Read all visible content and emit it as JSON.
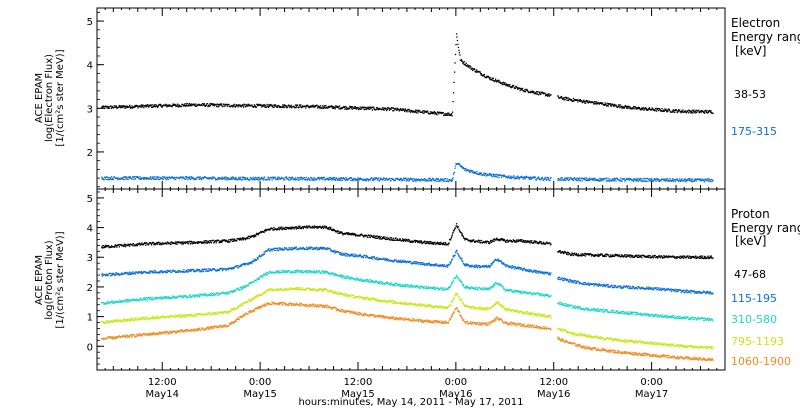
{
  "xlabel": "hours:minutes, May 14, 2011 - May 17, 2011",
  "x_ticks": [
    {
      "t": 12,
      "time": "12:00",
      "date": "May14"
    },
    {
      "t": 24,
      "time": "0:00",
      "date": "May15"
    },
    {
      "t": 36,
      "time": "12:00",
      "date": "May15"
    },
    {
      "t": 48,
      "time": "0:00",
      "date": "May16"
    },
    {
      "t": 60,
      "time": "12:00",
      "date": "May16"
    },
    {
      "t": 72,
      "time": "0:00",
      "date": "May17"
    }
  ],
  "panels": [
    {
      "id": "electron",
      "ylabel_lines": [
        "ACE EPAM",
        "log(Electron Flux)",
        "[1/(cm²s ster MeV)]"
      ],
      "yrange": [
        1.15,
        5.3
      ],
      "yticks": [
        2,
        3,
        4,
        5
      ],
      "legend_title": [
        "Electron",
        "Energy range"
      ],
      "legend_unit": "[keV]"
    },
    {
      "id": "proton",
      "ylabel_lines": [
        "ACE EPAM",
        "log(Proton Flux)",
        "[1/(cm²s ster MeV)]"
      ],
      "yrange": [
        -0.8,
        5.3
      ],
      "yticks": [
        0,
        1,
        2,
        3,
        4,
        5
      ],
      "legend_title": [
        "Proton",
        "Energy range"
      ],
      "legend_unit": "[keV]"
    }
  ],
  "chart_data": [
    {
      "type": "scatter",
      "xlabel": "hours:minutes, May 14, 2011 - May 17, 2011",
      "ylabel": "ACE EPAM log(Electron Flux) [1/(cm²s ster MeV)]",
      "x_unit": "hours since 2011-05-14 00:00",
      "xlim": [
        4,
        81
      ],
      "ylim": [
        1.15,
        5.3
      ],
      "legend": "right",
      "series": [
        {
          "name": "38-53",
          "color": "#000000",
          "x": [
            4.5,
            10,
            16,
            22,
            28,
            34,
            40,
            46,
            47.5,
            48,
            48.5,
            50,
            52,
            54,
            56,
            58,
            59.5,
            60.5,
            62,
            66,
            70,
            74,
            76,
            79.5
          ],
          "y": [
            3.02,
            3.05,
            3.08,
            3.06,
            3.05,
            3.02,
            2.98,
            2.88,
            2.86,
            4.7,
            4.1,
            3.9,
            3.7,
            3.55,
            3.43,
            3.35,
            3.3,
            3.25,
            3.2,
            3.1,
            3.0,
            2.95,
            2.93,
            2.92
          ]
        },
        {
          "name": "175-315",
          "color": "#0a6fd6",
          "x": [
            4.5,
            10,
            16,
            22,
            28,
            34,
            40,
            46,
            47.5,
            48,
            49,
            51,
            53,
            55,
            57,
            59.5,
            60.5,
            64,
            70,
            76,
            79.5
          ],
          "y": [
            1.4,
            1.4,
            1.4,
            1.39,
            1.39,
            1.38,
            1.37,
            1.36,
            1.35,
            1.75,
            1.6,
            1.5,
            1.45,
            1.42,
            1.4,
            1.38,
            1.38,
            1.37,
            1.36,
            1.35,
            1.35
          ]
        }
      ],
      "gaps": [
        [
          59.6,
          60.4
        ]
      ]
    },
    {
      "type": "scatter",
      "xlabel": "hours:minutes, May 14, 2011 - May 17, 2011",
      "ylabel": "ACE EPAM log(Proton Flux) [1/(cm²s ster MeV)]",
      "x_unit": "hours since 2011-05-14 00:00",
      "xlim": [
        4,
        81
      ],
      "ylim": [
        -0.8,
        5.3
      ],
      "legend": "right",
      "series": [
        {
          "name": "47-68",
          "color": "#000000",
          "x": [
            4.5,
            10,
            16,
            20,
            22,
            23,
            25,
            28,
            32,
            34,
            36,
            40,
            44,
            47,
            48,
            49,
            50,
            52,
            53,
            54,
            56,
            58,
            59.5,
            60.5,
            62,
            64,
            68,
            72,
            76,
            79.5
          ],
          "y": [
            3.35,
            3.45,
            3.5,
            3.55,
            3.62,
            3.7,
            3.95,
            4.0,
            4.02,
            3.8,
            3.75,
            3.62,
            3.5,
            3.45,
            4.1,
            3.6,
            3.55,
            3.5,
            3.62,
            3.55,
            3.55,
            3.5,
            3.45,
            3.2,
            3.1,
            3.08,
            3.05,
            3.02,
            3.0,
            3.0
          ]
        },
        {
          "name": "115-195",
          "color": "#0a6fd6",
          "x": [
            4.5,
            10,
            16,
            20,
            22,
            23,
            25,
            28,
            32,
            34,
            36,
            40,
            44,
            47,
            48,
            49,
            50,
            52,
            53,
            54,
            56,
            58,
            59.5,
            60.5,
            62,
            64,
            68,
            72,
            76,
            79.5
          ],
          "y": [
            2.4,
            2.5,
            2.55,
            2.6,
            2.75,
            2.85,
            3.25,
            3.3,
            3.3,
            3.1,
            3.05,
            2.9,
            2.78,
            2.7,
            3.2,
            2.75,
            2.7,
            2.68,
            2.95,
            2.72,
            2.6,
            2.5,
            2.45,
            2.3,
            2.2,
            2.1,
            2.0,
            1.95,
            1.85,
            1.8
          ]
        },
        {
          "name": "310-580",
          "color": "#1ad6c8",
          "x": [
            4.5,
            10,
            16,
            20,
            22,
            23,
            25,
            28,
            32,
            34,
            36,
            40,
            44,
            47,
            48,
            49,
            50,
            52,
            53,
            54,
            56,
            58,
            59.5,
            60.5,
            62,
            64,
            68,
            72,
            76,
            79.5
          ],
          "y": [
            1.45,
            1.6,
            1.7,
            1.8,
            2.0,
            2.15,
            2.5,
            2.52,
            2.5,
            2.35,
            2.25,
            2.1,
            1.98,
            1.92,
            2.4,
            2.0,
            1.95,
            1.92,
            2.15,
            1.9,
            1.82,
            1.75,
            1.7,
            1.45,
            1.35,
            1.25,
            1.15,
            1.05,
            0.95,
            0.9
          ]
        },
        {
          "name": "795-1193",
          "color": "#c8e616",
          "x": [
            4.5,
            10,
            16,
            20,
            22,
            23,
            25,
            28,
            32,
            34,
            36,
            40,
            44,
            47,
            48,
            49,
            50,
            52,
            53,
            54,
            56,
            58,
            59.5,
            60.5,
            62,
            64,
            68,
            72,
            76,
            79.5
          ],
          "y": [
            0.8,
            0.95,
            1.05,
            1.15,
            1.45,
            1.6,
            1.9,
            1.95,
            1.9,
            1.75,
            1.65,
            1.5,
            1.38,
            1.3,
            1.8,
            1.35,
            1.3,
            1.25,
            1.5,
            1.25,
            1.15,
            1.05,
            1.0,
            0.6,
            0.45,
            0.35,
            0.2,
            0.1,
            0.0,
            -0.05
          ]
        },
        {
          "name": "1060-1900",
          "color": "#f08a1e",
          "x": [
            4.5,
            10,
            16,
            20,
            22,
            23,
            25,
            28,
            32,
            34,
            36,
            40,
            44,
            47,
            48,
            49,
            50,
            52,
            53,
            54,
            56,
            58,
            59.5,
            60.5,
            62,
            64,
            68,
            72,
            76,
            79.5
          ],
          "y": [
            0.25,
            0.4,
            0.55,
            0.7,
            1.05,
            1.2,
            1.45,
            1.42,
            1.35,
            1.2,
            1.1,
            0.95,
            0.85,
            0.8,
            1.3,
            0.8,
            0.78,
            0.75,
            0.95,
            0.78,
            0.72,
            0.65,
            0.6,
            0.25,
            0.1,
            -0.05,
            -0.2,
            -0.3,
            -0.4,
            -0.45
          ]
        }
      ],
      "gaps": [
        [
          59.6,
          60.4
        ]
      ]
    }
  ]
}
